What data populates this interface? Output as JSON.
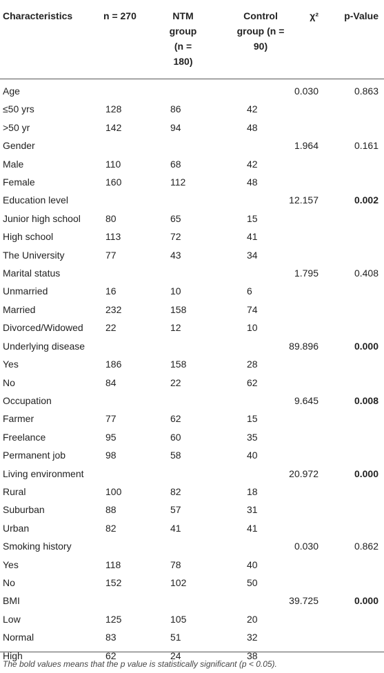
{
  "table": {
    "header": [
      "Characteristics",
      "n = 270",
      "NTM group (n = 180)",
      "Control group (n = 90)",
      "χ²",
      "p-Value"
    ],
    "rows": [
      {
        "cells": [
          "Age",
          null,
          null,
          null,
          "0.030",
          "0.863"
        ],
        "bold_p": false
      },
      {
        "cells": [
          "≤50 yrs",
          "128",
          "86",
          "42",
          null,
          null
        ],
        "bold_p": false
      },
      {
        "cells": [
          ">50 yr",
          "142",
          "94",
          "48",
          null,
          null
        ],
        "bold_p": false
      },
      {
        "cells": [
          "Gender",
          null,
          null,
          null,
          "1.964",
          "0.161"
        ],
        "bold_p": false
      },
      {
        "cells": [
          "Male",
          "110",
          "68",
          "42",
          null,
          null
        ],
        "bold_p": false
      },
      {
        "cells": [
          "Female",
          "160",
          "112",
          "48",
          null,
          null
        ],
        "bold_p": false
      },
      {
        "cells": [
          "Education level",
          null,
          null,
          null,
          "12.157",
          "0.002"
        ],
        "bold_p": true
      },
      {
        "cells": [
          "Junior high school",
          "80",
          "65",
          "15",
          null,
          null
        ],
        "bold_p": false
      },
      {
        "cells": [
          "High school",
          "113",
          "72",
          "41",
          null,
          null
        ],
        "bold_p": false
      },
      {
        "cells": [
          "The University",
          "77",
          "43",
          "34",
          null,
          null
        ],
        "bold_p": false
      },
      {
        "cells": [
          "Marital status",
          null,
          null,
          null,
          "1.795",
          "0.408"
        ],
        "bold_p": false
      },
      {
        "cells": [
          "Unmarried",
          "16",
          "10",
          "6",
          null,
          null
        ],
        "bold_p": false
      },
      {
        "cells": [
          "Married",
          "232",
          "158",
          "74",
          null,
          null
        ],
        "bold_p": false
      },
      {
        "cells": [
          "Divorced/Widowed",
          "22",
          "12",
          "10",
          null,
          null
        ],
        "bold_p": false
      },
      {
        "cells": [
          "Underlying disease",
          null,
          null,
          null,
          "89.896",
          "0.000"
        ],
        "bold_p": true
      },
      {
        "cells": [
          "Yes",
          "186",
          "158",
          "28",
          null,
          null
        ],
        "bold_p": false
      },
      {
        "cells": [
          "No",
          "84",
          "22",
          "62",
          null,
          null
        ],
        "bold_p": false
      },
      {
        "cells": [
          "Occupation",
          null,
          null,
          null,
          "9.645",
          "0.008"
        ],
        "bold_p": true
      },
      {
        "cells": [
          "Farmer",
          "77",
          "62",
          "15",
          null,
          null
        ],
        "bold_p": false
      },
      {
        "cells": [
          "Freelance",
          "95",
          "60",
          "35",
          null,
          null
        ],
        "bold_p": false
      },
      {
        "cells": [
          "Permanent job",
          "98",
          "58",
          "40",
          null,
          null
        ],
        "bold_p": false
      },
      {
        "cells": [
          "Living environment",
          null,
          null,
          null,
          "20.972",
          "0.000"
        ],
        "bold_p": true
      },
      {
        "cells": [
          "Rural",
          "100",
          "82",
          "18",
          null,
          null
        ],
        "bold_p": false
      },
      {
        "cells": [
          "Suburban",
          "88",
          "57",
          "31",
          null,
          null
        ],
        "bold_p": false
      },
      {
        "cells": [
          "Urban",
          "82",
          "41",
          "41",
          null,
          null
        ],
        "bold_p": false
      },
      {
        "cells": [
          "Smoking history",
          null,
          null,
          null,
          "0.030",
          "0.862"
        ],
        "bold_p": false
      },
      {
        "cells": [
          "Yes",
          "118",
          "78",
          "40",
          null,
          null
        ],
        "bold_p": false
      },
      {
        "cells": [
          "No",
          "152",
          "102",
          "50",
          null,
          null
        ],
        "bold_p": false
      },
      {
        "cells": [
          "BMI",
          null,
          null,
          null,
          "39.725",
          "0.000"
        ],
        "bold_p": true
      },
      {
        "cells": [
          "Low",
          "125",
          "105",
          "20",
          null,
          null
        ],
        "bold_p": false
      },
      {
        "cells": [
          "Normal",
          "83",
          "51",
          "32",
          null,
          null
        ],
        "bold_p": false
      },
      {
        "cells": [
          "High",
          "62",
          "24",
          "38",
          null,
          null
        ],
        "bold_p": false
      }
    ],
    "footnote": "The bold values means that the p value is statistically significant (p < 0.05)."
  }
}
